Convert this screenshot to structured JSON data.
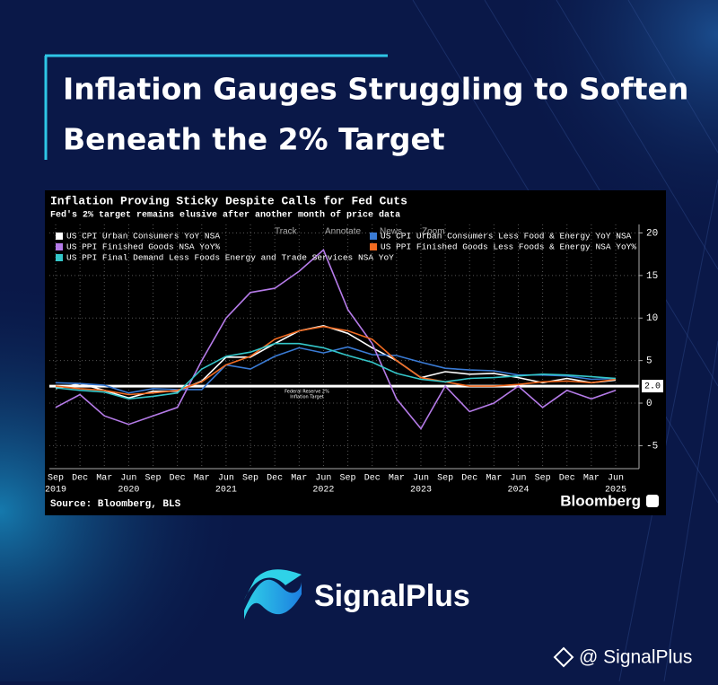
{
  "header": {
    "title_lines": [
      "Inflation Gauges Struggling to Soften",
      "Beneath the 2% Target"
    ]
  },
  "chart_data": {
    "type": "line",
    "title": "Inflation Proving Sticky Despite Calls for Fed Cuts",
    "subtitle": "Fed's 2% target remains elusive after another month of price data",
    "toolbar": [
      "Track",
      "Annotate",
      "News",
      "Zoom"
    ],
    "categories": [
      "Sep",
      "Dec",
      "Mar",
      "Jun",
      "Sep",
      "Dec",
      "Mar",
      "Jun",
      "Sep",
      "Dec",
      "Mar",
      "Jun",
      "Sep",
      "Dec",
      "Mar",
      "Jun",
      "Sep",
      "Dec",
      "Mar",
      "Jun",
      "Sep",
      "Dec",
      "Mar",
      "Jun"
    ],
    "x_years": [
      "2019",
      null,
      null,
      "2020",
      null,
      null,
      null,
      "2021",
      null,
      null,
      null,
      "2022",
      null,
      null,
      null,
      "2023",
      null,
      null,
      null,
      "2024",
      null,
      null,
      null,
      "2025"
    ],
    "series": [
      {
        "name": "US CPI Urban Consumers YoY NSA",
        "color": "#ffffff",
        "values": [
          1.7,
          2.3,
          1.5,
          0.6,
          1.4,
          1.4,
          2.6,
          5.4,
          5.4,
          7.0,
          8.5,
          9.1,
          8.2,
          6.5,
          5.0,
          3.0,
          3.7,
          3.4,
          3.5,
          3.0,
          2.4,
          2.9,
          2.4,
          2.7
        ]
      },
      {
        "name": "US CPI Urban Consumers Less Food & Energy YoY NSA",
        "color": "#3a7bd5",
        "values": [
          2.4,
          2.3,
          2.1,
          1.2,
          1.7,
          1.6,
          1.6,
          4.5,
          4.0,
          5.5,
          6.5,
          5.9,
          6.6,
          5.7,
          5.6,
          4.8,
          4.1,
          3.9,
          3.8,
          3.3,
          3.3,
          3.2,
          2.8,
          2.9
        ]
      },
      {
        "name": "US PPI Finished Goods NSA YoY%",
        "color": "#b57be8",
        "values": [
          -0.5,
          1.0,
          -1.5,
          -2.5,
          -1.5,
          -0.5,
          5.0,
          10.0,
          13.0,
          13.5,
          15.5,
          18.0,
          11.0,
          7.0,
          0.5,
          -3.0,
          2.0,
          -1.0,
          0.0,
          2.0,
          -0.5,
          1.5,
          0.5,
          1.5
        ]
      },
      {
        "name": "US PPI Finished Goods Less Foods & Energy NSA YoY%",
        "color": "#f26b21",
        "values": [
          2.0,
          1.7,
          1.5,
          1.0,
          1.2,
          1.5,
          2.5,
          4.5,
          5.5,
          7.5,
          8.5,
          9.0,
          8.5,
          7.5,
          5.0,
          3.0,
          2.5,
          2.0,
          2.0,
          2.2,
          2.5,
          2.6,
          2.4,
          2.8
        ]
      },
      {
        "name": "US PPI Final Demand Less Foods Energy and Trade Services NSA YoY",
        "color": "#34c6c9",
        "values": [
          1.8,
          1.5,
          1.3,
          0.5,
          0.8,
          1.2,
          4.0,
          5.5,
          6.0,
          7.0,
          7.0,
          6.5,
          5.6,
          4.8,
          3.5,
          2.8,
          2.5,
          2.9,
          3.0,
          3.2,
          3.4,
          3.3,
          3.1,
          2.9
        ]
      }
    ],
    "ylim": [
      -7.7,
      21
    ],
    "yticks": [
      -5,
      0,
      5,
      10,
      15,
      20
    ],
    "grid": true,
    "target": {
      "value": 2,
      "label": "2.0",
      "annotation": [
        "Federal Reserve 2%",
        "Inflation Target"
      ]
    },
    "source": "Source: Bloomberg, BLS",
    "brand": "Bloomberg"
  },
  "footer": {
    "logo_text": "SignalPlus",
    "handle": "@ SignalPlus"
  }
}
